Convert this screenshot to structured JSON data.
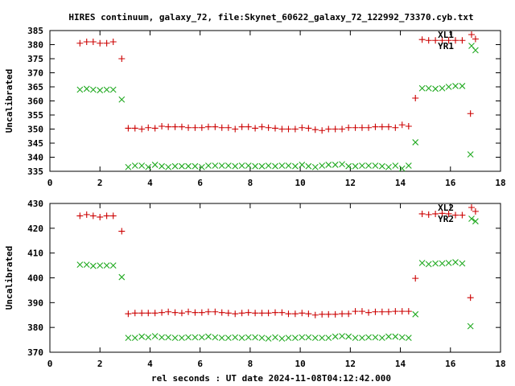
{
  "title": "HIRES continuum, galaxy_72, file:Skynet_60622_galaxy_72_122992_73370.cyb.txt",
  "xlabel": "rel seconds : UT date 2024-11-08T04:12:42.000",
  "colors": {
    "series1": "#cc0000",
    "series2": "#22aa22",
    "axes": "#000000",
    "background": "#ffffff"
  },
  "chart_data": [
    {
      "type": "scatter",
      "ylabel": "Uncalibrated",
      "xlim": [
        0,
        18
      ],
      "ylim": [
        335,
        385
      ],
      "xticks": [
        0,
        2,
        4,
        6,
        8,
        10,
        12,
        14,
        16,
        18
      ],
      "yticks": [
        335,
        340,
        345,
        350,
        355,
        360,
        365,
        370,
        375,
        380,
        385
      ],
      "legend_position": "top-right",
      "grid": false,
      "series": [
        {
          "name": "XL1",
          "marker": "plus",
          "color": "#cc0000",
          "x": [
            1.2,
            1.47,
            1.73,
            2.0,
            2.27,
            2.53,
            2.87,
            3.13,
            3.4,
            3.67,
            3.93,
            4.2,
            4.47,
            4.73,
            5.0,
            5.27,
            5.53,
            5.8,
            6.07,
            6.33,
            6.6,
            6.87,
            7.13,
            7.4,
            7.67,
            7.93,
            8.2,
            8.47,
            8.73,
            9.0,
            9.27,
            9.53,
            9.8,
            10.07,
            10.33,
            10.6,
            10.87,
            11.13,
            11.4,
            11.67,
            11.93,
            12.2,
            12.47,
            12.73,
            13.0,
            13.27,
            13.53,
            13.8,
            14.07,
            14.33,
            14.6,
            14.87,
            15.13,
            15.4,
            15.67,
            15.93,
            16.2,
            16.47,
            16.8,
            17.0
          ],
          "y": [
            380.5,
            381.0,
            381.0,
            380.5,
            380.5,
            381.0,
            375.0,
            350.3,
            350.3,
            350.0,
            350.5,
            350.3,
            351.0,
            350.8,
            350.8,
            350.8,
            350.5,
            350.5,
            350.5,
            350.8,
            350.8,
            350.5,
            350.5,
            350.0,
            350.8,
            350.8,
            350.3,
            350.8,
            350.5,
            350.3,
            350.0,
            350.0,
            350.0,
            350.5,
            350.3,
            349.8,
            349.5,
            350.0,
            350.0,
            350.0,
            350.5,
            350.5,
            350.5,
            350.5,
            350.8,
            350.8,
            350.8,
            350.5,
            351.5,
            351.0,
            361.0,
            381.8,
            381.5,
            381.5,
            381.5,
            381.5,
            381.5,
            381.5,
            355.5,
            382.0
          ]
        },
        {
          "name": "YR1",
          "marker": "cross",
          "color": "#22aa22",
          "x": [
            1.2,
            1.47,
            1.73,
            2.0,
            2.27,
            2.53,
            2.87,
            3.13,
            3.4,
            3.67,
            3.93,
            4.2,
            4.47,
            4.73,
            5.0,
            5.27,
            5.53,
            5.8,
            6.07,
            6.33,
            6.6,
            6.87,
            7.13,
            7.4,
            7.67,
            7.93,
            8.2,
            8.47,
            8.73,
            9.0,
            9.27,
            9.53,
            9.8,
            10.07,
            10.33,
            10.6,
            10.87,
            11.13,
            11.4,
            11.67,
            11.93,
            12.2,
            12.47,
            12.73,
            13.0,
            13.27,
            13.53,
            13.8,
            14.07,
            14.33,
            14.6,
            14.87,
            15.13,
            15.4,
            15.67,
            15.93,
            16.2,
            16.47,
            16.8,
            17.0
          ],
          "y": [
            364.0,
            364.3,
            364.0,
            363.8,
            364.0,
            364.0,
            360.5,
            336.5,
            337.0,
            337.0,
            336.5,
            337.3,
            336.8,
            336.5,
            336.8,
            336.8,
            336.8,
            336.8,
            336.5,
            337.0,
            337.0,
            337.0,
            337.0,
            336.8,
            337.0,
            337.0,
            336.8,
            336.8,
            337.0,
            336.8,
            337.0,
            337.0,
            336.8,
            337.3,
            336.8,
            336.5,
            337.0,
            337.3,
            337.3,
            337.5,
            336.8,
            336.8,
            337.0,
            337.0,
            337.0,
            336.8,
            336.5,
            337.0,
            336.0,
            337.0,
            345.3,
            364.5,
            364.5,
            364.3,
            364.5,
            365.0,
            365.3,
            365.3,
            341.0,
            378.0
          ]
        }
      ]
    },
    {
      "type": "scatter",
      "ylabel": "Uncalibrated",
      "xlim": [
        0,
        18
      ],
      "ylim": [
        370,
        430
      ],
      "xticks": [
        0,
        2,
        4,
        6,
        8,
        10,
        12,
        14,
        16,
        18
      ],
      "yticks": [
        370,
        380,
        390,
        400,
        410,
        420,
        430
      ],
      "legend_position": "top-right",
      "grid": false,
      "series": [
        {
          "name": "XL2",
          "marker": "plus",
          "color": "#cc0000",
          "x": [
            1.2,
            1.47,
            1.73,
            2.0,
            2.27,
            2.53,
            2.87,
            3.13,
            3.4,
            3.67,
            3.93,
            4.2,
            4.47,
            4.73,
            5.0,
            5.27,
            5.53,
            5.8,
            6.07,
            6.33,
            6.6,
            6.87,
            7.13,
            7.4,
            7.67,
            7.93,
            8.2,
            8.47,
            8.73,
            9.0,
            9.27,
            9.53,
            9.8,
            10.07,
            10.33,
            10.6,
            10.87,
            11.13,
            11.4,
            11.67,
            11.93,
            12.2,
            12.47,
            12.73,
            13.0,
            13.27,
            13.53,
            13.8,
            14.07,
            14.33,
            14.6,
            14.87,
            15.13,
            15.4,
            15.67,
            15.93,
            16.2,
            16.47,
            16.8,
            17.0
          ],
          "y": [
            425.0,
            425.5,
            425.0,
            424.5,
            425.0,
            425.0,
            418.8,
            385.5,
            385.8,
            385.8,
            385.8,
            385.8,
            386.0,
            386.3,
            386.0,
            385.8,
            386.3,
            386.0,
            386.0,
            386.3,
            386.3,
            386.0,
            385.8,
            385.5,
            385.8,
            386.0,
            385.8,
            385.8,
            385.8,
            386.0,
            386.0,
            385.5,
            385.5,
            385.8,
            385.5,
            385.0,
            385.3,
            385.3,
            385.3,
            385.5,
            385.5,
            386.5,
            386.5,
            386.0,
            386.3,
            386.3,
            386.3,
            386.5,
            386.5,
            386.5,
            399.8,
            425.8,
            425.5,
            425.8,
            426.0,
            425.8,
            425.3,
            425.3,
            392.0,
            426.8
          ]
        },
        {
          "name": "YR2",
          "marker": "cross",
          "color": "#22aa22",
          "x": [
            1.2,
            1.47,
            1.73,
            2.0,
            2.27,
            2.53,
            2.87,
            3.13,
            3.4,
            3.67,
            3.93,
            4.2,
            4.47,
            4.73,
            5.0,
            5.27,
            5.53,
            5.8,
            6.07,
            6.33,
            6.6,
            6.87,
            7.13,
            7.4,
            7.67,
            7.93,
            8.2,
            8.47,
            8.73,
            9.0,
            9.27,
            9.53,
            9.8,
            10.07,
            10.33,
            10.6,
            10.87,
            11.13,
            11.4,
            11.67,
            11.93,
            12.2,
            12.47,
            12.73,
            13.0,
            13.27,
            13.53,
            13.8,
            14.07,
            14.33,
            14.6,
            14.87,
            15.13,
            15.4,
            15.67,
            15.93,
            16.2,
            16.47,
            16.8,
            17.0
          ],
          "y": [
            405.3,
            405.3,
            404.8,
            405.0,
            405.0,
            405.0,
            400.3,
            375.8,
            375.8,
            376.3,
            376.0,
            376.5,
            376.0,
            376.0,
            375.8,
            375.8,
            376.0,
            376.0,
            376.0,
            376.3,
            376.0,
            375.8,
            375.8,
            376.0,
            375.8,
            376.0,
            376.0,
            375.8,
            375.5,
            376.0,
            375.5,
            375.8,
            375.8,
            376.0,
            376.0,
            375.8,
            375.8,
            375.8,
            376.3,
            376.5,
            376.3,
            375.8,
            375.8,
            376.0,
            376.0,
            375.8,
            376.3,
            376.3,
            376.0,
            375.8,
            385.3,
            406.0,
            405.5,
            405.8,
            405.8,
            406.0,
            406.3,
            405.8,
            380.5,
            422.8
          ]
        }
      ]
    }
  ]
}
